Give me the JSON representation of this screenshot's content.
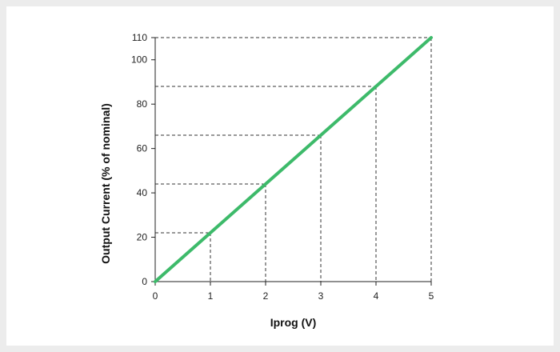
{
  "chart_data": {
    "type": "line",
    "title": "",
    "xlabel": "Iprog (V)",
    "ylabel": "Output Current (% of nominal)",
    "xlim": [
      0,
      5
    ],
    "ylim": [
      0,
      110
    ],
    "x_ticks": [
      "0",
      "1",
      "2",
      "3",
      "4",
      "5"
    ],
    "y_ticks": [
      "0",
      "20",
      "40",
      "60",
      "80",
      "100",
      "110"
    ],
    "series": [
      {
        "x": [
          0,
          5
        ],
        "y": [
          0,
          110
        ],
        "color": "#3dba6a"
      }
    ],
    "reference_points": [
      {
        "x": 1,
        "y": 22
      },
      {
        "x": 2,
        "y": 44
      },
      {
        "x": 3,
        "y": 66
      },
      {
        "x": 4,
        "y": 88
      },
      {
        "x": 5,
        "y": 110
      }
    ],
    "grid": false,
    "reference_line_style": "dashed"
  }
}
